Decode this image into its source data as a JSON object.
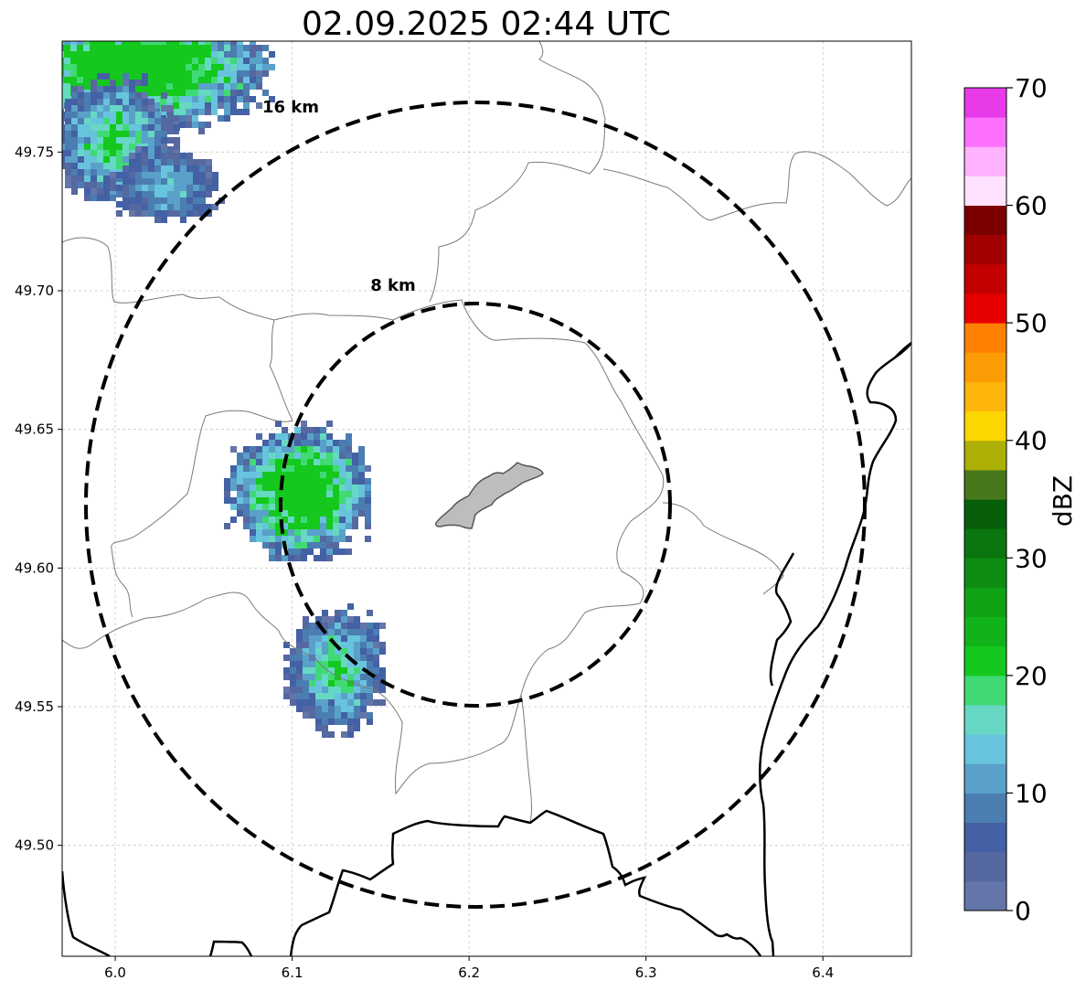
{
  "title": "02.09.2025 02:44 UTC",
  "x_ticks": [
    "6.0",
    "6.1",
    "6.2",
    "6.3",
    "6.4"
  ],
  "y_ticks": [
    "49.75",
    "49.70",
    "49.65",
    "49.60",
    "49.55",
    "49.50"
  ],
  "ring_labels": {
    "inner": "8 km",
    "outer": "16 km"
  },
  "colorbar": {
    "label": "dBZ",
    "ticks": [
      "0",
      "10",
      "20",
      "30",
      "40",
      "50",
      "60",
      "70"
    ],
    "colors": [
      "#6475aa",
      "#5568a0",
      "#4361a4",
      "#4b7db1",
      "#5aa1c9",
      "#68c3dd",
      "#66d8c3",
      "#3fda73",
      "#14c81e",
      "#10b41a",
      "#0fa214",
      "#0e8d12",
      "#0b760f",
      "#075e0b",
      "#48781b",
      "#acb006",
      "#fdd600",
      "#fdb50b",
      "#fc9c05",
      "#ff7f00",
      "#e60000",
      "#c20000",
      "#a20000",
      "#7a0000",
      "#ffe3fe",
      "#ffb2fd",
      "#fd70fd",
      "#e83ae9"
    ]
  },
  "map": {
    "lon_range": [
      5.97,
      6.45
    ],
    "lat_range": [
      49.46,
      49.79
    ],
    "radar_site": "airport-shape",
    "echo_cells": [
      {
        "name": "northwest-echo",
        "max_dbz": 24
      },
      {
        "name": "west-echo",
        "max_dbz": 22
      },
      {
        "name": "southwest-echo",
        "max_dbz": 14
      }
    ]
  }
}
